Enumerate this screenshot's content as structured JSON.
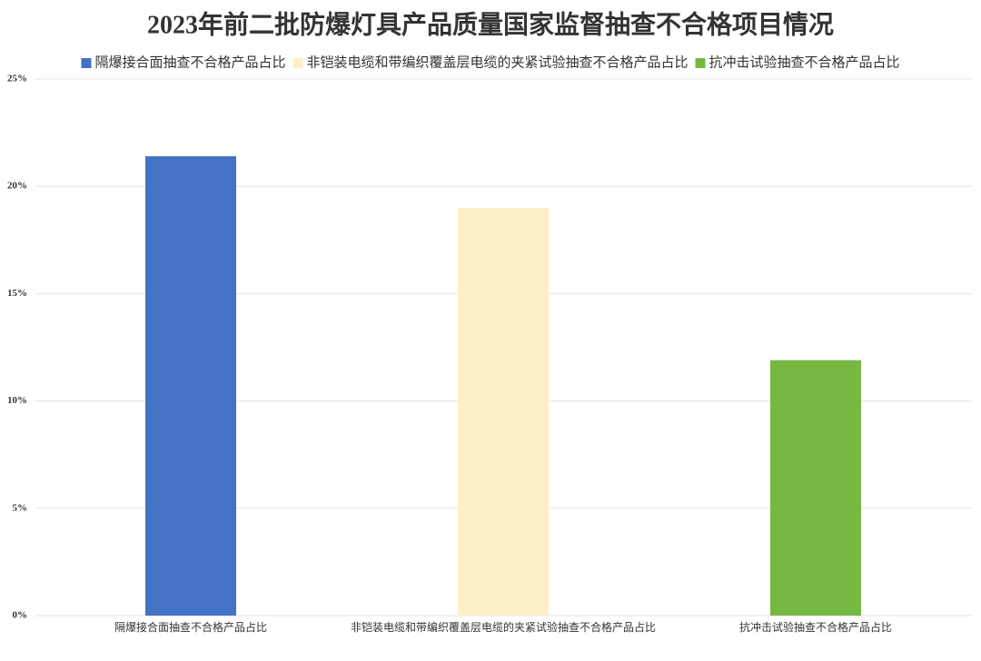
{
  "chart_data": {
    "type": "bar",
    "title": "2023年前二批防爆灯具产品质量国家监督抽查不合格项目情况",
    "categories": [
      "隔爆接合面抽查不合格产品占比",
      "非铠装电缆和带编织覆盖层电缆的夹紧试验抽查不合格产品占比",
      "抗冲击试验抽查不合格产品占比"
    ],
    "values": [
      21.4,
      19.0,
      11.9
    ],
    "colors": [
      "#4472c4",
      "#fdefc8",
      "#77b843"
    ],
    "ylim": [
      0,
      25
    ],
    "yticks": [
      {
        "value": 0,
        "label": "0%"
      },
      {
        "value": 5,
        "label": "5%"
      },
      {
        "value": 10,
        "label": "10%"
      },
      {
        "value": 15,
        "label": "15%"
      },
      {
        "value": 20,
        "label": "20%"
      },
      {
        "value": 25,
        "label": "25%"
      }
    ],
    "grid": true,
    "legend": "top"
  }
}
